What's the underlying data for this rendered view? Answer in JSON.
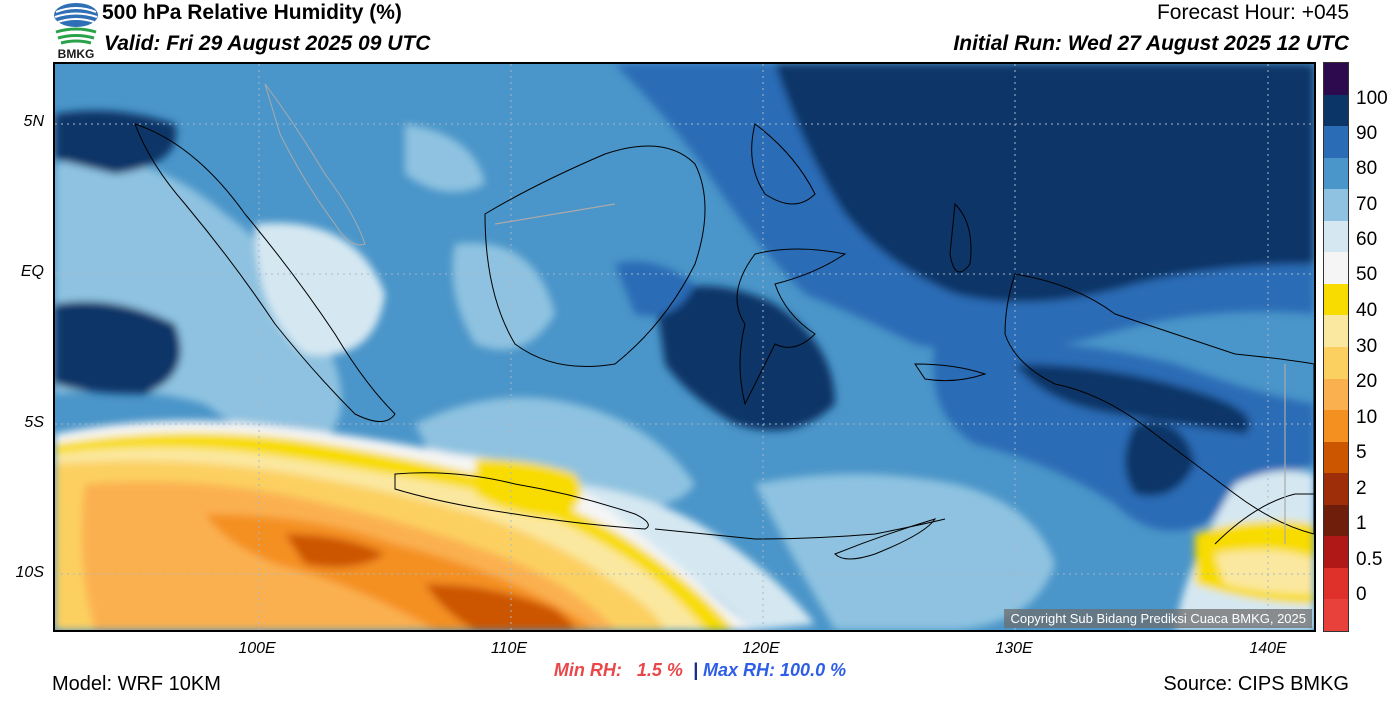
{
  "header": {
    "title": "500 hPa Relative Humidity (%)",
    "valid": "Valid: Fri 29 August 2025 09 UTC",
    "forecast_hour": "Forecast Hour: +045",
    "initial_run": "Initial Run: Wed 27 August 2025 12 UTC"
  },
  "logo": {
    "text": "BMKG"
  },
  "axes": {
    "y_ticks": [
      "5N",
      "EQ",
      "5S",
      "10S"
    ],
    "x_ticks": [
      "100E",
      "110E",
      "120E",
      "130E",
      "140E"
    ]
  },
  "colorbar": {
    "labels": [
      "100",
      "90",
      "80",
      "70",
      "60",
      "50",
      "40",
      "30",
      "20",
      "10",
      "5",
      "2",
      "1",
      "0.5",
      "0"
    ],
    "colors": [
      "#2d0a4e",
      "#0b3567",
      "#2a6cb6",
      "#4a95c9",
      "#8ec2e0",
      "#d5e8f2",
      "#f5f5f5",
      "#f8dc00",
      "#fbe8a0",
      "#fcd060",
      "#fbb050",
      "#f49020",
      "#cc5500",
      "#9e2e0a",
      "#6e1e0a",
      "#b01818",
      "#e0302a",
      "#e8403a"
    ]
  },
  "stats": {
    "min_label": "Min RH:",
    "min_value": "1.5 %",
    "separator": "|",
    "max_label": "Max RH:",
    "max_value": "100.0 %"
  },
  "footer": {
    "model": "Model: WRF 10KM",
    "source": "Source: CIPS BMKG",
    "copyright": "Copyright Sub Bidang Prediksi Cuaca BMKG, 2025"
  }
}
